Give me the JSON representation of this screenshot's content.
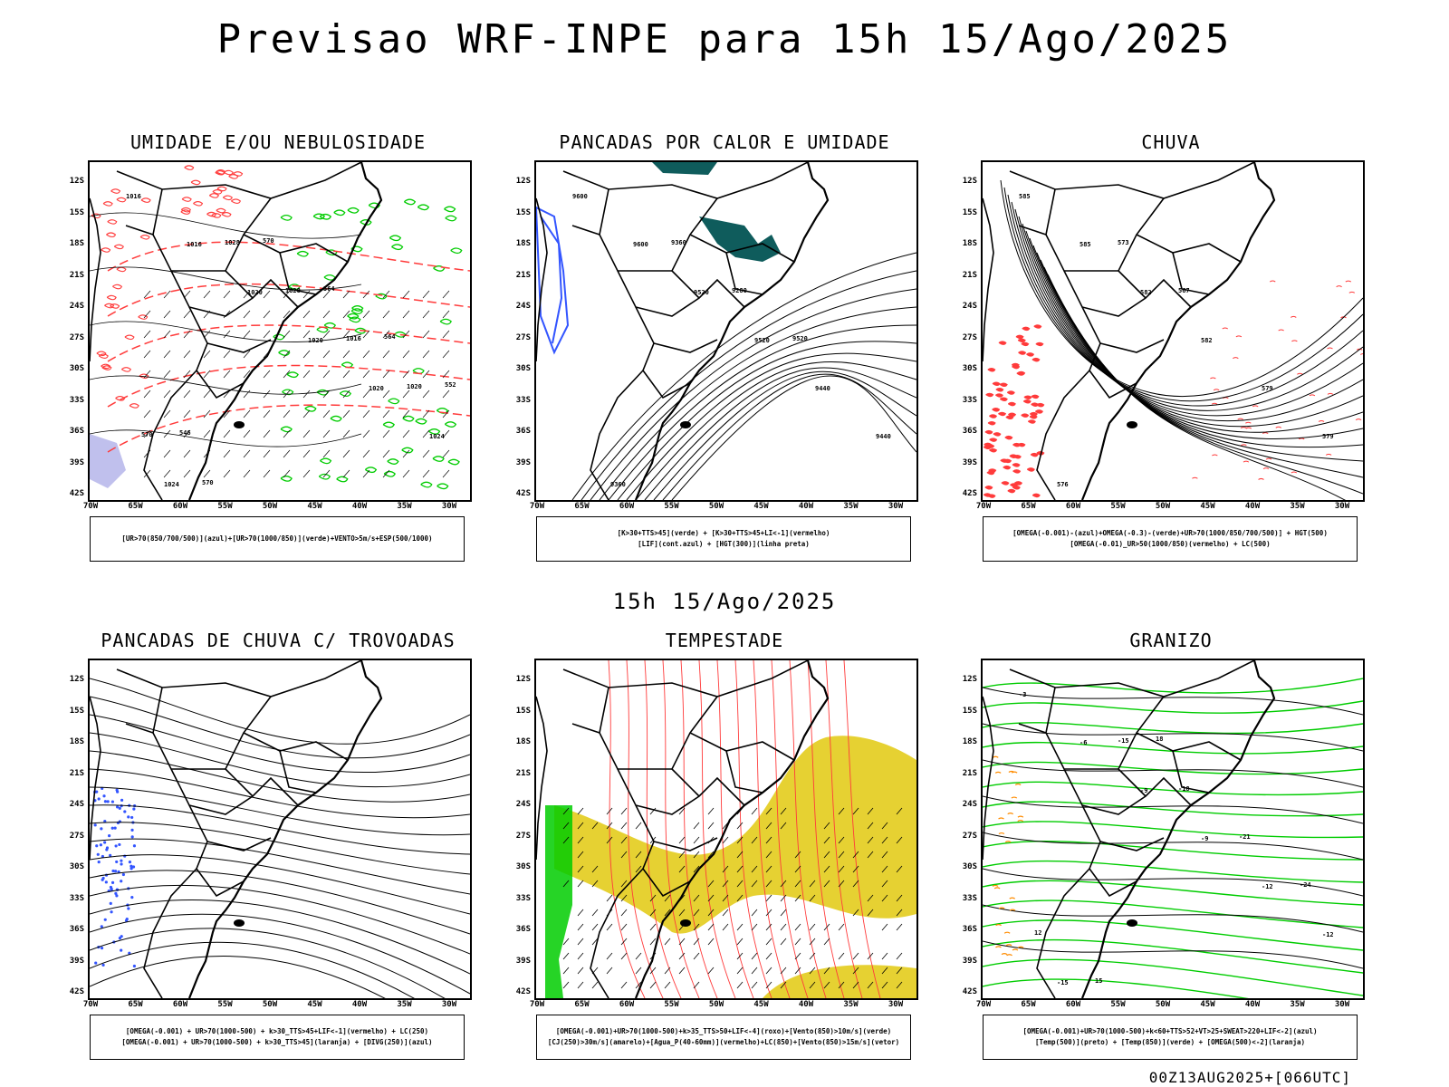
{
  "title": "Previsao WRF-INPE  para 15h 15/Ago/2025",
  "middle_title": "15h 15/Ago/2025",
  "footer": "00Z13AUG2025+[066UTC]",
  "lat_labels": [
    "12S",
    "15S",
    "18S",
    "21S",
    "24S",
    "27S",
    "30S",
    "33S",
    "36S",
    "39S",
    "42S"
  ],
  "lon_labels": [
    "70W",
    "65W",
    "60W",
    "55W",
    "50W",
    "45W",
    "40W",
    "35W",
    "30W"
  ],
  "panels": [
    {
      "title": "UMIDADE E/OU NEBULOSIDADE",
      "legend": [
        "[UR>70(850/700/500)](azul)+[UR>70(1000/850)](verde)+VENTO>5m/s+ESP(500/1000)"
      ],
      "contour_labels": [
        "1016",
        "1016",
        "1020",
        "1020",
        "1020",
        "1024",
        "1024",
        "1028",
        "1028",
        "1016",
        "1020",
        "570",
        "570",
        "570",
        "564",
        "564",
        "552",
        "546"
      ]
    },
    {
      "title": "PANCADAS POR CALOR E UMIDADE",
      "legend": [
        "[K>30+TTS>45](verde) + [K>30+TTS>45+LI<-1](vermelho)",
        "[LIF](cont.azul) + [HGT(300)](linha preta)"
      ],
      "contour_labels": [
        "9600",
        "9600",
        "9520",
        "9520",
        "9440",
        "9440",
        "9360",
        "9360",
        "9280",
        "9520"
      ]
    },
    {
      "title": "CHUVA",
      "legend": [
        "[OMEGA(-0.001)-(azul)+OMEGA(-0.3)-(verde)+UR>70(1000/850/700/500)] + HGT(500)",
        "[OMEGA(-0.01)_UR>50(1000/850)(vermelho) + LC(500)"
      ],
      "contour_labels": [
        "585",
        "585",
        "582",
        "582",
        "579",
        "579",
        "576",
        "573",
        "567"
      ]
    },
    {
      "title": "PANCADAS DE CHUVA C/ TROVOADAS",
      "legend": [
        "[OMEGA(-0.001) + UR>70(1000-500) + k>30_TTS>45+LIF<-1](vermelho) + LC(250)",
        "[OMEGA(-0.001) + UR>70(1000-500) + k>30_TTS>45](laranja) + [DIVG(250)](azul)"
      ],
      "contour_labels": []
    },
    {
      "title": "TEMPESTADE",
      "legend": [
        "[OMEGA(-0.001)+UR>70(1000-500)+k>35_TTS>50+LIF<-4](roxo)+[Vento(850)>10m/s](verde)",
        "[CJ(250)>30m/s](amarelo)+[Agua_P(40-60mm)](vermelho)+LC(850)+[Vento(850)>15m/s](vetor)"
      ],
      "contour_labels": []
    },
    {
      "title": "GRANIZO",
      "legend": [
        "[OMEGA(-0.001)+UR>70(1000-500)+k<60+TTS>52+VT>25+SWEAT>220+LIF<-2](azul)",
        "[Temp(500)](preto) + [Temp(850)](verde) + [OMEGA(500)<-2](laranja)"
      ],
      "contour_labels": [
        "-3",
        "-6",
        "-9",
        "-9",
        "-12",
        "-12",
        "-15",
        "-15",
        "-18",
        "-21",
        "-24",
        "12",
        "15",
        "18"
      ]
    }
  ],
  "colors": {
    "red": "#ff3b3b",
    "green": "#00cc00",
    "blue": "#3355ff",
    "yellow": "#e6d132",
    "teal": "#0f5c5c",
    "lavender": "#b0b0e8",
    "orange": "#ff8c00"
  }
}
